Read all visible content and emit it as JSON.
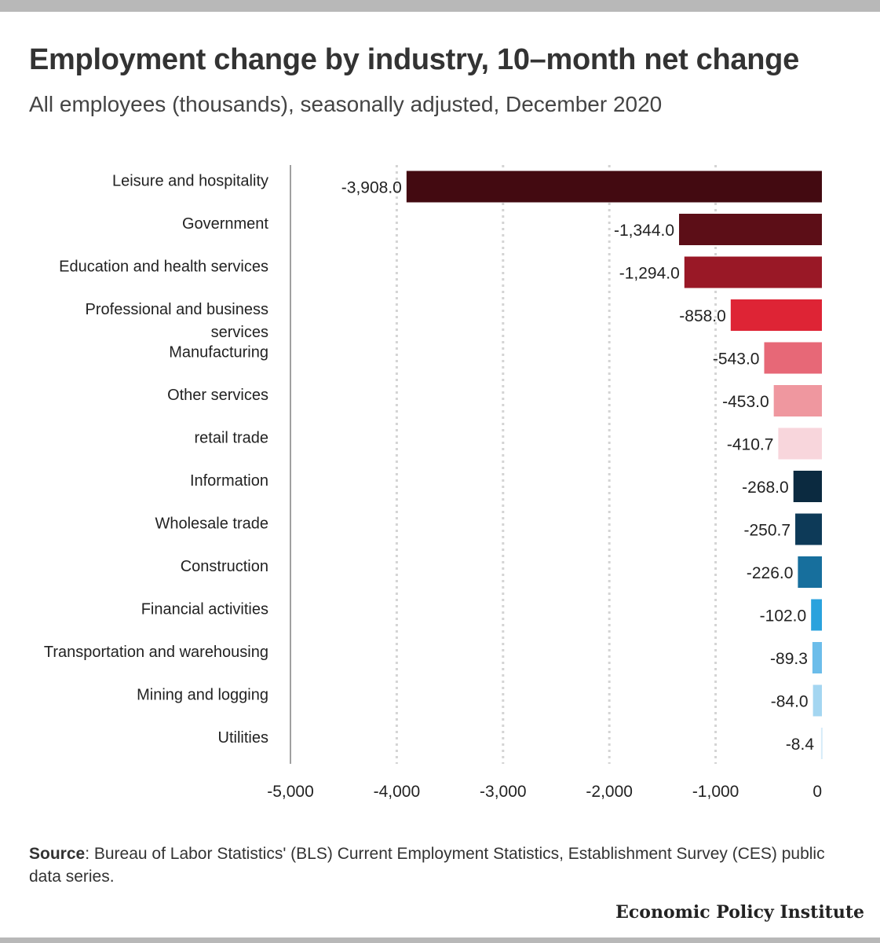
{
  "title": "Employment change by industry, 10–month net change",
  "subtitle": "All employees (thousands), seasonally adjusted, December 2020",
  "source": {
    "label": "Source",
    "text": ": Bureau of Labor Statistics' (BLS) Current Employment Statistics, Establishment Survey (CES) public data series."
  },
  "brand": "Economic Policy Institute",
  "chart_data": {
    "type": "bar",
    "orientation": "horizontal",
    "categories": [
      "Leisure and hospitality",
      "Government",
      "Education and health services",
      "Professional and business services",
      "Manufacturing",
      "Other services",
      "retail trade",
      "Information",
      "Wholesale trade",
      "Construction",
      "Financial activities",
      "Transportation and warehousing",
      "Mining and logging",
      "Utilities"
    ],
    "values": [
      -3908.0,
      -1344.0,
      -1294.0,
      -858.0,
      -543.0,
      -453.0,
      -410.7,
      -268.0,
      -250.7,
      -226.0,
      -102.0,
      -89.3,
      -84.0,
      -8.4
    ],
    "value_labels": [
      "-3,908.0",
      "-1,344.0",
      "-1,294.0",
      "-858.0",
      "-543.0",
      "-453.0",
      "-410.7",
      "-268.0",
      "-250.7",
      "-226.0",
      "-102.0",
      "-89.3",
      "-84.0",
      "-8.4"
    ],
    "colors": [
      "#430a11",
      "#5c0e17",
      "#991826",
      "#de2435",
      "#e76877",
      "#ef979f",
      "#f8d6dc",
      "#0b2a40",
      "#0d3a58",
      "#176f9d",
      "#2aa2dd",
      "#6cbdea",
      "#a4d6f1",
      "#d6ecf8"
    ],
    "xlim": [
      -5000,
      0
    ],
    "x_ticks": [
      -5000,
      -4000,
      -3000,
      -2000,
      -1000,
      0
    ],
    "x_tick_labels": [
      "-5,000",
      "-4,000",
      "-3,000",
      "-2,000",
      "-1,000",
      "0"
    ],
    "grid": "vertical dotted",
    "legend": "none"
  }
}
